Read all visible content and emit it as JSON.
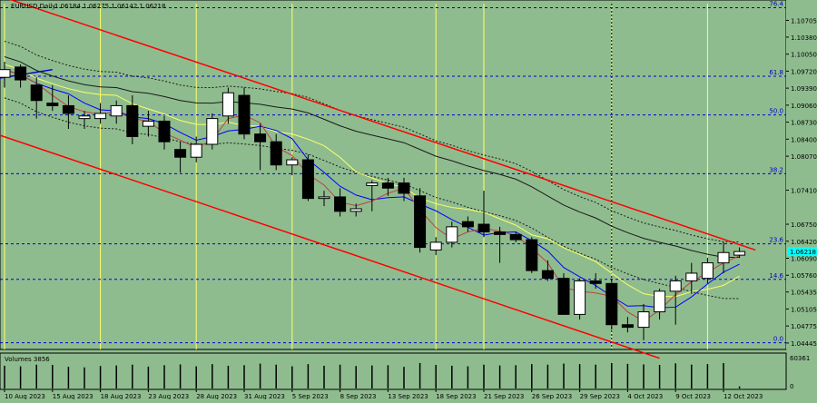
{
  "header": {
    "symbol": "EURUSD,Daily",
    "ohlc": "1.06184 1.06275 1.06142 1.06218"
  },
  "volume_panel": {
    "title": "Volumes 3856",
    "max_label": "60361",
    "zero_label": "0"
  },
  "colors": {
    "background": "#8fbc8f",
    "channel": "#ff0000",
    "fib": "#0000cc",
    "yellow": "#ffff66",
    "bull": "#ffffff",
    "bear": "#000000",
    "price_tag": "#00ffff"
  },
  "chart_data": {
    "type": "candlestick",
    "ylim": [
      1.0432,
      1.1103
    ],
    "x_labels": [
      {
        "i": 0,
        "label": "10 Aug 2023"
      },
      {
        "i": 3,
        "label": "15 Aug 2023"
      },
      {
        "i": 6,
        "label": "18 Aug 2023"
      },
      {
        "i": 9,
        "label": "23 Aug 2023"
      },
      {
        "i": 12,
        "label": "28 Aug 2023"
      },
      {
        "i": 15,
        "label": "31 Aug 2023"
      },
      {
        "i": 18,
        "label": "5 Sep 2023"
      },
      {
        "i": 21,
        "label": "8 Sep 2023"
      },
      {
        "i": 24,
        "label": "13 Sep 2023"
      },
      {
        "i": 27,
        "label": "18 Sep 2023"
      },
      {
        "i": 30,
        "label": "21 Sep 2023"
      },
      {
        "i": 33,
        "label": "26 Sep 2023"
      },
      {
        "i": 36,
        "label": "29 Sep 2023"
      },
      {
        "i": 39,
        "label": "4 Oct 2023"
      },
      {
        "i": 42,
        "label": "9 Oct 2023"
      },
      {
        "i": 45,
        "label": "12 Oct 2023"
      }
    ],
    "y_ticks": [
      "1.10705",
      "1.10380",
      "1.10050",
      "1.09720",
      "1.09390",
      "1.09060",
      "1.08730",
      "1.08400",
      "1.08070",
      "1.07410",
      "1.06750",
      "1.06420",
      "1.06090",
      "1.05760",
      "1.05435",
      "1.05105",
      "1.04775",
      "1.04445"
    ],
    "current_price": 1.06218,
    "fib_levels": [
      {
        "label": "76.4",
        "value": 1.1095
      },
      {
        "label": "61.8",
        "value": 1.0962
      },
      {
        "label": "50.0",
        "value": 1.0887
      },
      {
        "label": "38.2",
        "value": 1.0773
      },
      {
        "label": "23.6",
        "value": 1.0637
      },
      {
        "label": "14.6",
        "value": 1.0568
      },
      {
        "label": "0.0",
        "value": 1.0445
      }
    ],
    "candles": [
      [
        1.096,
        1.099,
        1.094,
        1.0975
      ],
      [
        1.098,
        1.0985,
        1.094,
        1.0955
      ],
      [
        1.0945,
        1.096,
        1.088,
        1.0915
      ],
      [
        1.091,
        1.0945,
        1.0895,
        1.0905
      ],
      [
        1.0905,
        1.0925,
        1.086,
        1.089
      ],
      [
        1.088,
        1.0895,
        1.086,
        1.0885
      ],
      [
        1.088,
        1.091,
        1.087,
        1.089
      ],
      [
        1.0885,
        1.0915,
        1.087,
        1.0905
      ],
      [
        1.0905,
        1.0925,
        1.083,
        1.0845
      ],
      [
        1.0865,
        1.0895,
        1.0845,
        1.0875
      ],
      [
        1.0875,
        1.0885,
        1.082,
        1.0835
      ],
      [
        1.082,
        1.0835,
        1.0775,
        1.0805
      ],
      [
        1.0805,
        1.0845,
        1.0795,
        1.083
      ],
      [
        1.083,
        1.089,
        1.082,
        1.088
      ],
      [
        1.0885,
        1.094,
        1.087,
        1.093
      ],
      [
        1.0925,
        1.094,
        1.084,
        1.085
      ],
      [
        1.085,
        1.087,
        1.078,
        1.0835
      ],
      [
        1.0835,
        1.085,
        1.078,
        1.079
      ],
      [
        1.079,
        1.0805,
        1.077,
        1.08
      ],
      [
        1.08,
        1.081,
        1.072,
        1.0725
      ],
      [
        1.0725,
        1.074,
        1.071,
        1.0728
      ],
      [
        1.0728,
        1.0745,
        1.069,
        1.07
      ],
      [
        1.07,
        1.0715,
        1.069,
        1.0705
      ],
      [
        1.075,
        1.076,
        1.07,
        1.0755
      ],
      [
        1.0755,
        1.0765,
        1.073,
        1.0745
      ],
      [
        1.0755,
        1.0765,
        1.072,
        1.0735
      ],
      [
        1.073,
        1.0745,
        1.062,
        1.063
      ],
      [
        1.0625,
        1.065,
        1.0615,
        1.064
      ],
      [
        1.064,
        1.068,
        1.063,
        1.067
      ],
      [
        1.068,
        1.069,
        1.066,
        1.067
      ],
      [
        1.0675,
        1.074,
        1.065,
        1.066
      ],
      [
        1.066,
        1.067,
        1.06,
        1.0655
      ],
      [
        1.0655,
        1.066,
        1.064,
        1.0645
      ],
      [
        1.0645,
        1.065,
        1.058,
        1.0585
      ],
      [
        1.0585,
        1.0605,
        1.0565,
        1.057
      ],
      [
        1.057,
        1.058,
        1.05,
        1.05
      ],
      [
        1.05,
        1.057,
        1.049,
        1.0565
      ],
      [
        1.0565,
        1.058,
        1.055,
        1.056
      ],
      [
        1.056,
        1.057,
        1.047,
        1.048
      ],
      [
        1.048,
        1.0495,
        1.0465,
        1.0475
      ],
      [
        1.0475,
        1.052,
        1.045,
        1.0505
      ],
      [
        1.0505,
        1.055,
        1.049,
        1.0545
      ],
      [
        1.0545,
        1.0575,
        1.048,
        1.0565
      ],
      [
        1.0565,
        1.06,
        1.054,
        1.058
      ],
      [
        1.057,
        1.061,
        1.056,
        1.06
      ],
      [
        1.06,
        1.064,
        1.058,
        1.062
      ],
      [
        1.0615,
        1.063,
        1.061,
        1.0622
      ]
    ],
    "volumes": [
      42000,
      41000,
      44000,
      43500,
      40000,
      39000,
      41500,
      42500,
      44000,
      40500,
      43000,
      44500,
      41000,
      45000,
      42000,
      43000,
      46000,
      44000,
      41000,
      45000,
      42000,
      44000,
      41500,
      42500,
      43000,
      40000,
      47000,
      43500,
      42000,
      41000,
      44000,
      42500,
      43000,
      45000,
      44000,
      46000,
      45000,
      44000,
      47000,
      45500,
      44500,
      43500,
      46500,
      44000,
      45000,
      47000,
      3856
    ],
    "vertical_lines_yellow": [
      0,
      6,
      12,
      18,
      27,
      30,
      38,
      44
    ],
    "channel_upper": [
      [
        -1,
        1.1125
      ],
      [
        47,
        1.0625
      ]
    ],
    "channel_lower": [
      [
        -1,
        1.0855
      ],
      [
        41,
        1.0415
      ]
    ],
    "blue_trend": [
      [
        -1,
        1.0955
      ],
      [
        3,
        1.0975
      ]
    ]
  }
}
